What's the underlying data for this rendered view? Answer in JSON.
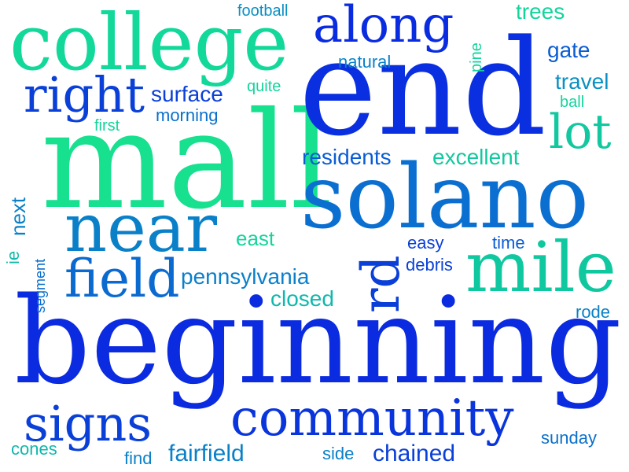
{
  "words": [
    {
      "text": "beginning",
      "color": "#0b2be0"
    },
    {
      "text": "mall",
      "color": "#17e08f"
    },
    {
      "text": "end",
      "color": "#0a2fe0"
    },
    {
      "text": "solano",
      "color": "#0a6fd0"
    },
    {
      "text": "college",
      "color": "#12d89a"
    },
    {
      "text": "near",
      "color": "#0a80c8"
    },
    {
      "text": "mile",
      "color": "#10c8a0"
    },
    {
      "text": "along",
      "color": "#0a2ce0"
    },
    {
      "text": "right",
      "color": "#0a40d8"
    },
    {
      "text": "community",
      "color": "#0a35dc"
    },
    {
      "text": "signs",
      "color": "#0a40d8"
    },
    {
      "text": "field",
      "color": "#0a6ad0"
    },
    {
      "text": "lot",
      "color": "#12c8a0"
    },
    {
      "text": "rd",
      "color": "#0a3fd8"
    },
    {
      "text": "residents",
      "color": "#0a5cd4"
    },
    {
      "text": "excellent",
      "color": "#12c8a0"
    },
    {
      "text": "pennsylvania",
      "color": "#0a7fca"
    },
    {
      "text": "surface",
      "color": "#0a40d8"
    },
    {
      "text": "trees",
      "color": "#14d49c"
    },
    {
      "text": "gate",
      "color": "#0a5cd4"
    },
    {
      "text": "travel",
      "color": "#0a90c4"
    },
    {
      "text": "closed",
      "color": "#0fb8ac"
    },
    {
      "text": "east",
      "color": "#14d49c"
    },
    {
      "text": "fairfield",
      "color": "#0a80c8"
    },
    {
      "text": "chained",
      "color": "#0a40d8"
    },
    {
      "text": "morning",
      "color": "#0a70cc"
    },
    {
      "text": "natural",
      "color": "#0a80c8"
    },
    {
      "text": "football",
      "color": "#0a90c4"
    },
    {
      "text": "quite",
      "color": "#14d49c"
    },
    {
      "text": "first",
      "color": "#14d49c"
    },
    {
      "text": "ball",
      "color": "#14d49c"
    },
    {
      "text": "pine",
      "color": "#14d49c"
    },
    {
      "text": "next",
      "color": "#0a80c8"
    },
    {
      "text": "ie",
      "color": "#0fb8ac"
    },
    {
      "text": "segment",
      "color": "#0a70cc"
    },
    {
      "text": "easy",
      "color": "#0a40d8"
    },
    {
      "text": "time",
      "color": "#0a5cd4"
    },
    {
      "text": "debris",
      "color": "#0a40d8"
    },
    {
      "text": "rode",
      "color": "#0a80c8"
    },
    {
      "text": "sunday",
      "color": "#0a70cc"
    },
    {
      "text": "cones",
      "color": "#0fb8ac"
    },
    {
      "text": "find",
      "color": "#0a80c8"
    },
    {
      "text": "side",
      "color": "#0a80c8"
    }
  ]
}
